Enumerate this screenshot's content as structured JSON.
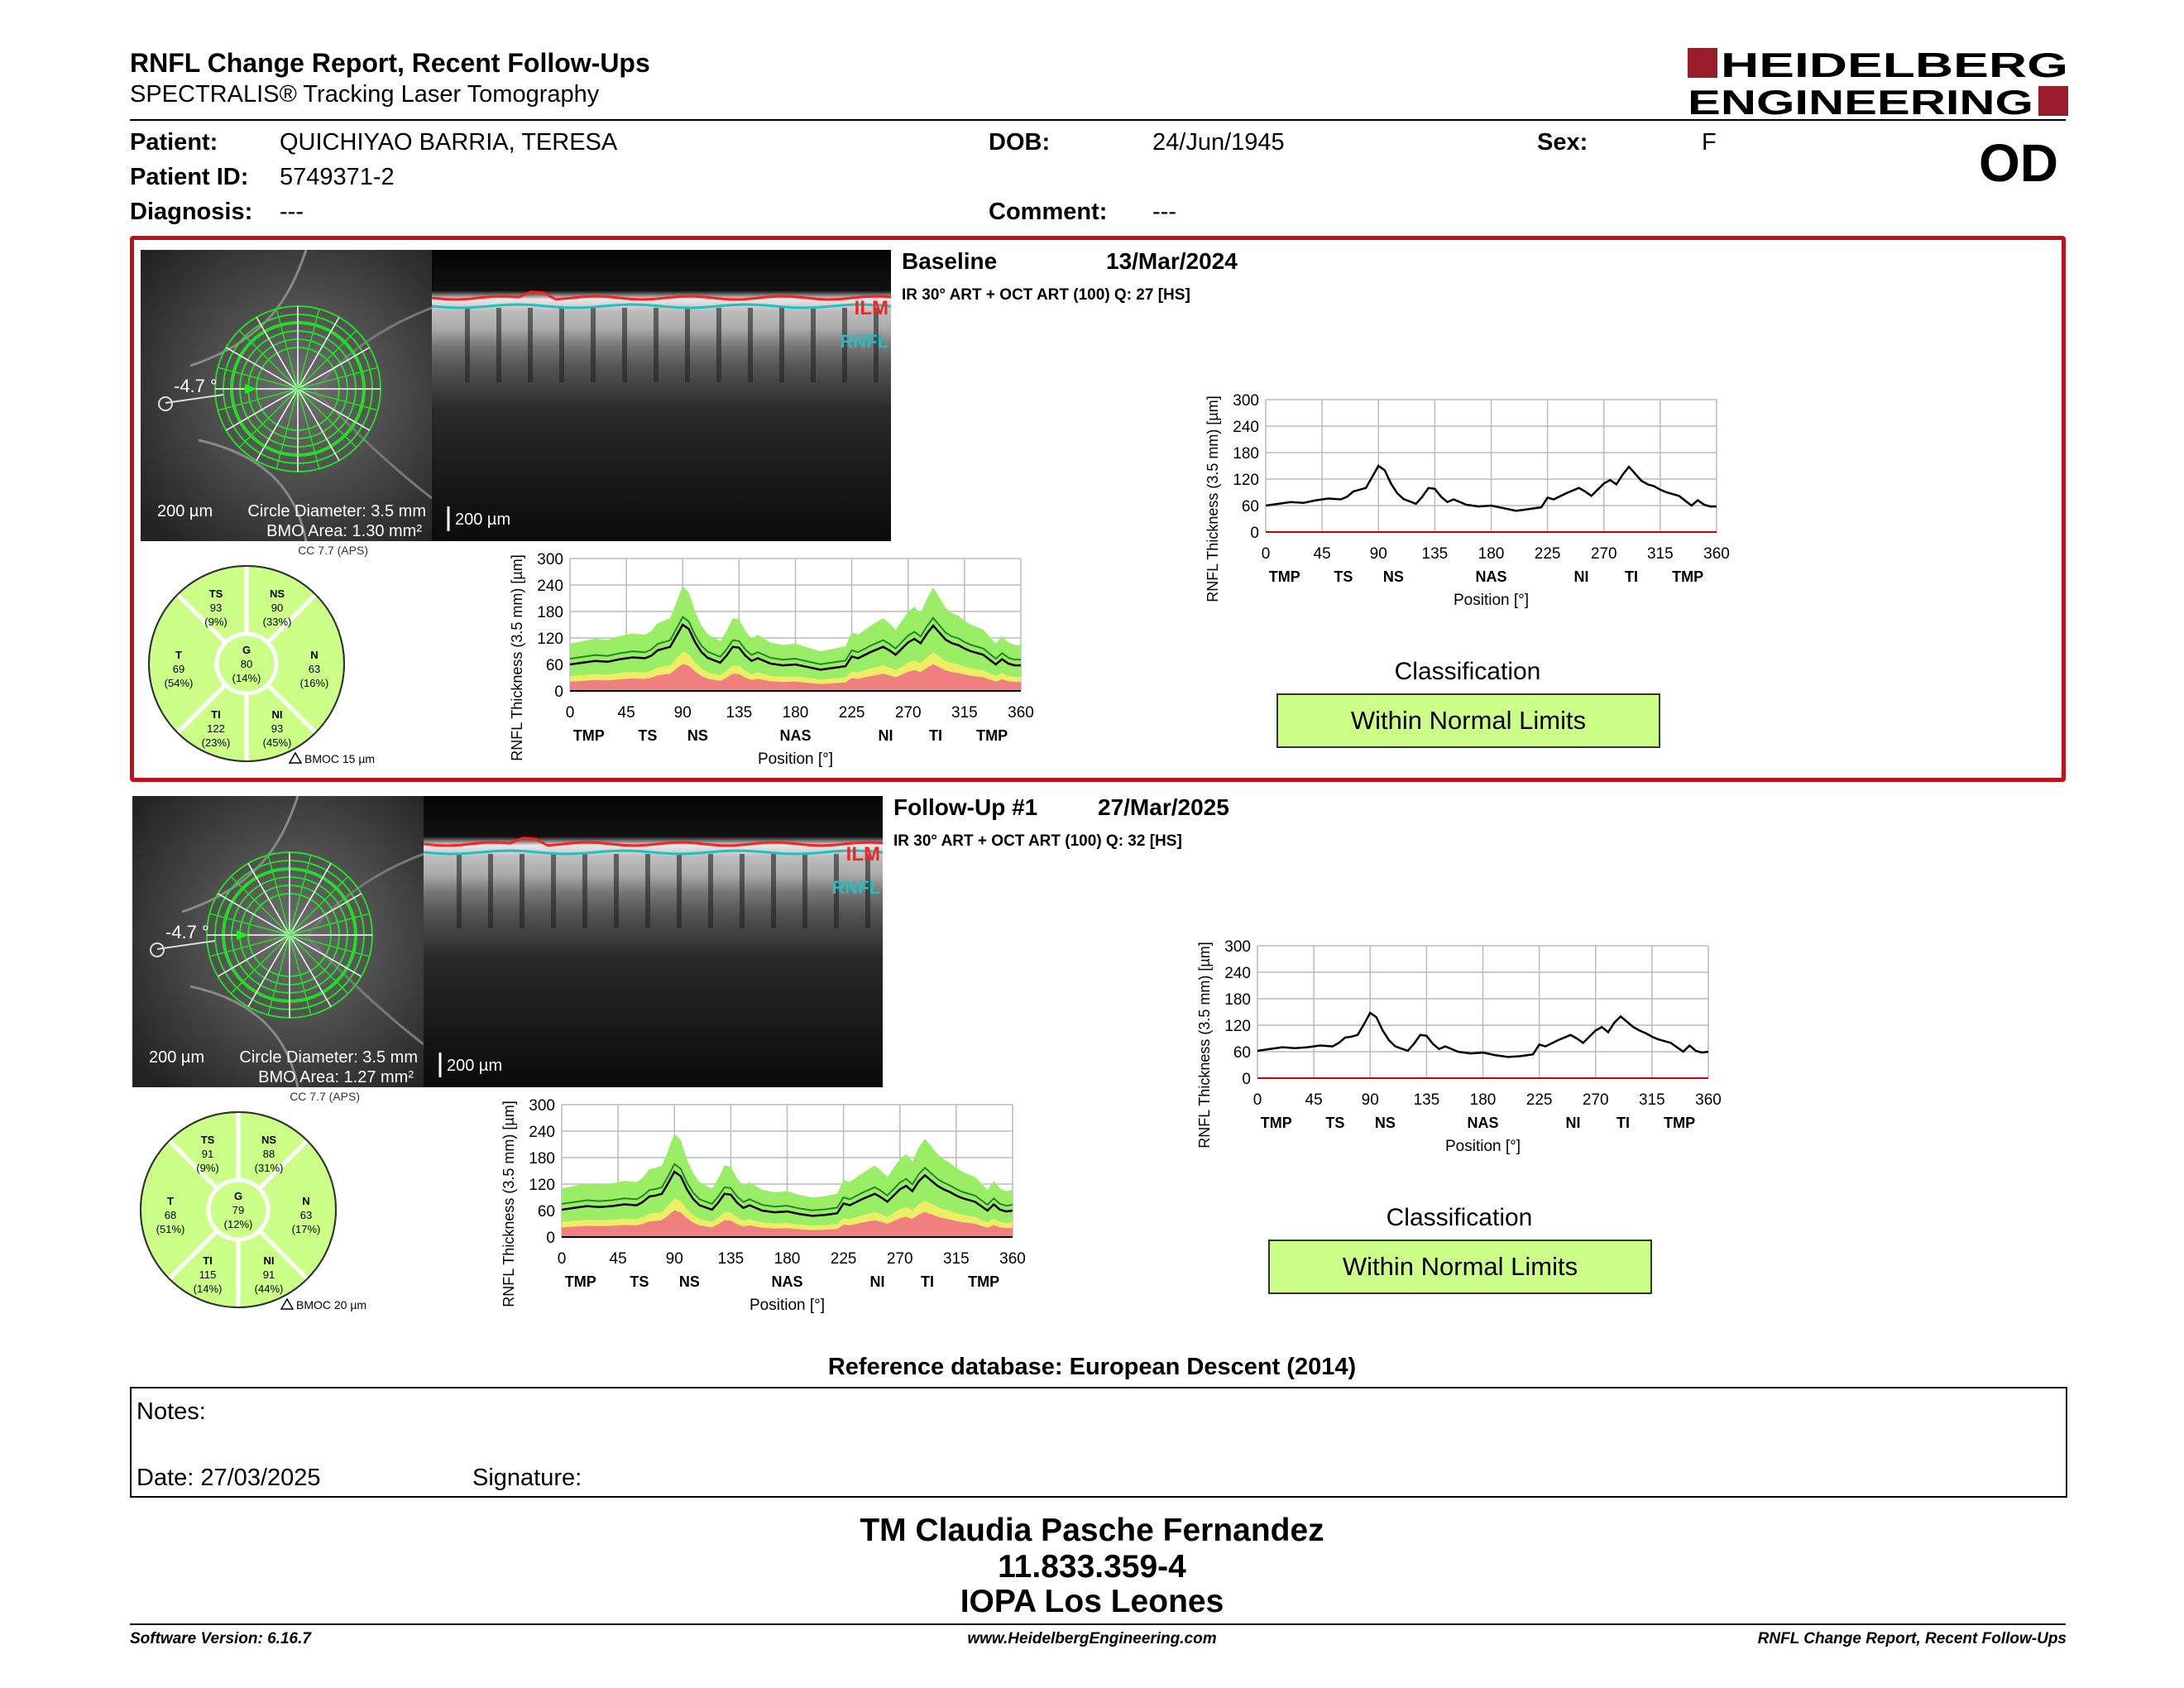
{
  "header": {
    "title": "RNFL Change Report, Recent Follow-Ups",
    "subtitle": "SPECTRALIS® Tracking Laser Tomography",
    "logo_line1": "HEIDELBERG",
    "logo_line2": "ENGINEERING",
    "eye": "OD"
  },
  "patient": {
    "patient_label": "Patient:",
    "patient_name": "QUICHIYAO BARRIA, TERESA",
    "id_label": "Patient ID:",
    "id_value": "5749371-2",
    "diagnosis_label": "Diagnosis:",
    "diagnosis_value": "---",
    "dob_label": "DOB:",
    "dob_value": "24/Jun/1945",
    "comment_label": "Comment:",
    "comment_value": "---",
    "sex_label": "Sex:",
    "sex_value": "F"
  },
  "exams": [
    {
      "label": "Baseline",
      "date": "13/Mar/2024",
      "acq": "IR 30° ART + OCT ART (100) Q: 27 [HS]",
      "angle": "-4.7 °",
      "scale_fundus": "200 µm",
      "scale_bscan": "200 µm",
      "circle_diameter": "Circle Diameter: 3.5 mm",
      "bmo_area": "BMO Area: 1.30 mm²",
      "ilm": "ILM",
      "rnfl": "RNFL",
      "cc": "CC 7.7 (APS)",
      "bmoc": "BMOC 15 µm",
      "sectors": {
        "TS": [
          "TS",
          "93",
          "(9%)"
        ],
        "NS": [
          "NS",
          "90",
          "(33%)"
        ],
        "T": [
          "T",
          "69",
          "(54%)"
        ],
        "G": [
          "G",
          "80",
          "(14%)"
        ],
        "N": [
          "N",
          "63",
          "(16%)"
        ],
        "TI": [
          "TI",
          "122",
          "(23%)"
        ],
        "NI": [
          "NI",
          "93",
          "(45%)"
        ]
      },
      "classification_title": "Classification",
      "classification": "Within Normal Limits"
    },
    {
      "label": "Follow-Up #1",
      "date": "27/Mar/2025",
      "acq": "IR 30° ART + OCT ART (100) Q: 32 [HS]",
      "angle": "-4.7 °",
      "scale_fundus": "200 µm",
      "scale_bscan": "200 µm",
      "circle_diameter": "Circle Diameter: 3.5 mm",
      "bmo_area": "BMO Area: 1.27 mm²",
      "ilm": "ILM",
      "rnfl": "RNFL",
      "cc": "CC 7.7 (APS)",
      "bmoc": "BMOC 20 µm",
      "sectors": {
        "TS": [
          "TS",
          "91",
          "(9%)"
        ],
        "NS": [
          "NS",
          "88",
          "(31%)"
        ],
        "T": [
          "T",
          "68",
          "(51%)"
        ],
        "G": [
          "G",
          "79",
          "(12%)"
        ],
        "N": [
          "N",
          "63",
          "(17%)"
        ],
        "TI": [
          "TI",
          "115",
          "(14%)"
        ],
        "NI": [
          "NI",
          "91",
          "(44%)"
        ]
      },
      "classification_title": "Classification",
      "classification": "Within Normal Limits"
    }
  ],
  "chart_data": [
    {
      "type": "line",
      "title": "",
      "ylabel": "RNFL Thickness (3.5 mm) [µm]",
      "xlabel": "Position [°]",
      "xlim": [
        0,
        360
      ],
      "ylim": [
        0,
        300
      ],
      "xticks": [
        0,
        45,
        90,
        135,
        180,
        225,
        270,
        315,
        360
      ],
      "yticks": [
        0,
        60,
        120,
        180,
        240,
        300
      ],
      "sector_labels": [
        "TMP",
        "TS",
        "NS",
        "NAS",
        "NI",
        "TI",
        "TMP"
      ],
      "sector_positions": [
        15,
        62,
        102,
        180,
        252,
        292,
        337
      ],
      "series": [
        {
          "x": [
            0,
            10,
            20,
            30,
            40,
            50,
            60,
            65,
            70,
            75,
            80,
            85,
            90,
            95,
            100,
            105,
            110,
            120,
            125,
            130,
            135,
            140,
            145,
            150,
            160,
            170,
            180,
            190,
            200,
            210,
            220,
            225,
            230,
            240,
            250,
            255,
            260,
            265,
            270,
            275,
            280,
            285,
            290,
            295,
            300,
            305,
            310,
            315,
            320,
            330,
            340,
            345,
            350,
            355,
            360
          ],
          "y": [
            60,
            64,
            68,
            66,
            72,
            76,
            74,
            80,
            92,
            96,
            100,
            125,
            150,
            140,
            110,
            88,
            75,
            64,
            80,
            100,
            98,
            80,
            68,
            74,
            62,
            58,
            60,
            54,
            48,
            52,
            56,
            78,
            74,
            88,
            100,
            92,
            82,
            96,
            110,
            118,
            108,
            130,
            148,
            132,
            116,
            108,
            104,
            96,
            90,
            82,
            60,
            72,
            62,
            58,
            58
          ]
        }
      ],
      "normative_bands": "within-normal / borderline / outside-normal"
    },
    {
      "type": "line",
      "title": "",
      "ylabel": "RNFL Thickness (3.5 mm) [µm]",
      "xlabel": "Position [°]",
      "xlim": [
        0,
        360
      ],
      "ylim": [
        0,
        300
      ],
      "xticks": [
        0,
        45,
        90,
        135,
        180,
        225,
        270,
        315,
        360
      ],
      "yticks": [
        0,
        60,
        120,
        180,
        240,
        300
      ],
      "sector_labels": [
        "TMP",
        "TS",
        "NS",
        "NAS",
        "NI",
        "TI",
        "TMP"
      ],
      "sector_positions": [
        15,
        62,
        102,
        180,
        252,
        292,
        337
      ],
      "series": [
        {
          "x": [
            0,
            10,
            20,
            30,
            40,
            50,
            60,
            65,
            70,
            75,
            80,
            85,
            90,
            95,
            100,
            105,
            110,
            120,
            125,
            130,
            135,
            140,
            145,
            150,
            160,
            170,
            180,
            190,
            200,
            210,
            220,
            225,
            230,
            240,
            250,
            255,
            260,
            265,
            270,
            275,
            280,
            285,
            290,
            295,
            300,
            305,
            310,
            315,
            320,
            330,
            340,
            345,
            350,
            355,
            360
          ],
          "y": [
            62,
            66,
            70,
            68,
            70,
            74,
            72,
            80,
            92,
            94,
            98,
            122,
            148,
            138,
            108,
            86,
            72,
            62,
            78,
            98,
            96,
            78,
            66,
            72,
            60,
            56,
            58,
            52,
            48,
            50,
            54,
            76,
            72,
            86,
            98,
            90,
            80,
            94,
            108,
            116,
            104,
            126,
            140,
            128,
            116,
            108,
            102,
            94,
            88,
            80,
            60,
            74,
            62,
            58,
            60
          ]
        }
      ],
      "normative_bands": "within-normal / borderline / outside-normal"
    }
  ],
  "reference_db": "Reference database: European Descent (2014)",
  "notes": {
    "notes_label": "Notes:",
    "date_label": "Date: 27/03/2025",
    "signature_label": "Signature:"
  },
  "signature_block": {
    "name": "TM Claudia Pasche Fernandez",
    "id": "11.833.359-4",
    "org": "IOPA Los Leones"
  },
  "footer": {
    "version": "Software Version: 6.16.7",
    "website": "www.HeidelbergEngineering.com",
    "report_name": "RNFL Change Report, Recent Follow-Ups"
  },
  "colors": {
    "selected_border": "#c0101a",
    "classification_fill": "#ccff88",
    "normal_band": "#99ee66",
    "borderline_band": "#eeee66",
    "outside_band": "#f08080",
    "ilm_line": "#ff2020",
    "rnfl_line": "#20c0c0",
    "scan_circle": "#22dd22"
  }
}
